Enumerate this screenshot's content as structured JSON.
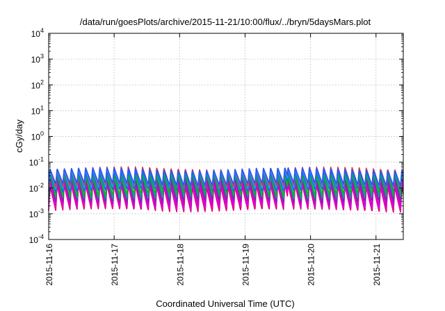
{
  "chart_data": {
    "type": "line",
    "title": "/data/run/goesPlots/archive/2015-11-21/10:00/flux/../bryn/5daysMars.plot",
    "xlabel": "Coordinated Universal Time (UTC)",
    "ylabel": "cGy/day",
    "y_scale": "log",
    "ylim": [
      0.0001,
      10000
    ],
    "xlim": [
      "2015-11-16T00:00",
      "2015-11-21T10:00"
    ],
    "grid": true,
    "legend": "none",
    "y_ticks": [
      {
        "base": "10",
        "exp": "-4"
      },
      {
        "base": "10",
        "exp": "-3"
      },
      {
        "base": "10",
        "exp": "-2"
      },
      {
        "base": "10",
        "exp": "-1"
      },
      {
        "base": "10",
        "exp": "0"
      },
      {
        "base": "10",
        "exp": "1"
      },
      {
        "base": "10",
        "exp": "2"
      },
      {
        "base": "10",
        "exp": "3"
      },
      {
        "base": "10",
        "exp": "4"
      }
    ],
    "x_ticks": [
      "2015-11-16",
      "2015-11-17",
      "2015-11-18",
      "2015-11-19",
      "2015-11-20",
      "2015-11-21"
    ],
    "oscillation": {
      "cycles_per_day": 9.2,
      "segments": [
        {
          "start_day": 0.0,
          "end_day": 3.65,
          "phase": 0.0
        },
        {
          "start_day": 3.65,
          "end_day": 5.42,
          "phase": 0.55
        }
      ]
    },
    "series": [
      {
        "color": "#e0007a",
        "peak": 0.012,
        "trough": 0.0013
      },
      {
        "color": "#e000e0",
        "peak": 0.016,
        "trough": 0.0017
      },
      {
        "color": "#cc00cc",
        "peak": 0.02,
        "trough": 0.0022
      },
      {
        "color": "#7030a0",
        "peak": 0.026,
        "trough": 0.003
      },
      {
        "color": "#00a0a0",
        "peak": 0.033,
        "trough": 0.0042
      },
      {
        "color": "#00c000",
        "peak": 0.038,
        "trough": 0.0055
      },
      {
        "color": "#3355ff",
        "peak": 0.045,
        "trough": 0.008
      },
      {
        "color": "#00aaff",
        "peak": 0.052,
        "trough": 0.01
      },
      {
        "color": "#ff3030",
        "peak": 0.06,
        "trough": 0.012
      },
      {
        "color": "#1e5aff",
        "peak": 0.055,
        "trough": 0.014
      }
    ]
  }
}
